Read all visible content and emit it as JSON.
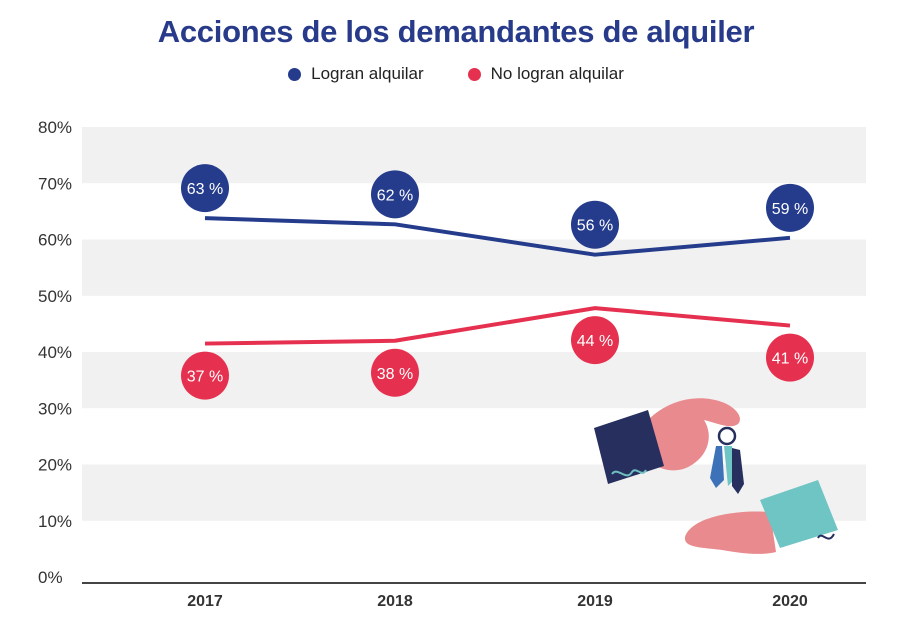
{
  "chart_data": {
    "type": "line",
    "title": "Acciones de los demandantes de alquiler",
    "categories": [
      "2017",
      "2018",
      "2019",
      "2020"
    ],
    "series": [
      {
        "name": "Logran alquilar",
        "color": "#253c8c",
        "values": [
          63,
          62,
          56,
          59
        ],
        "labels": [
          "63 %",
          "62 %",
          "56 %",
          "59 %"
        ],
        "line_values": [
          63.8,
          62.7,
          57.3,
          60.3
        ]
      },
      {
        "name": "No logran alquilar",
        "color": "#e5314f",
        "values": [
          37,
          38,
          44,
          41
        ],
        "labels": [
          "37 %",
          "38 %",
          "44 %",
          "41 %"
        ],
        "line_values": [
          41.5,
          42.0,
          47.8,
          44.7
        ]
      }
    ],
    "yticks": [
      "0%",
      "10%",
      "20%",
      "30%",
      "40%",
      "50%",
      "60%",
      "70%",
      "80%"
    ],
    "ylim": [
      0,
      80
    ],
    "legend_position": "top-center",
    "grid": "alternating-bands"
  },
  "colors": {
    "title": "#283a8a",
    "band": "#f1f1f1",
    "axis": "#444444"
  },
  "illustration": "hands-exchanging-keys"
}
